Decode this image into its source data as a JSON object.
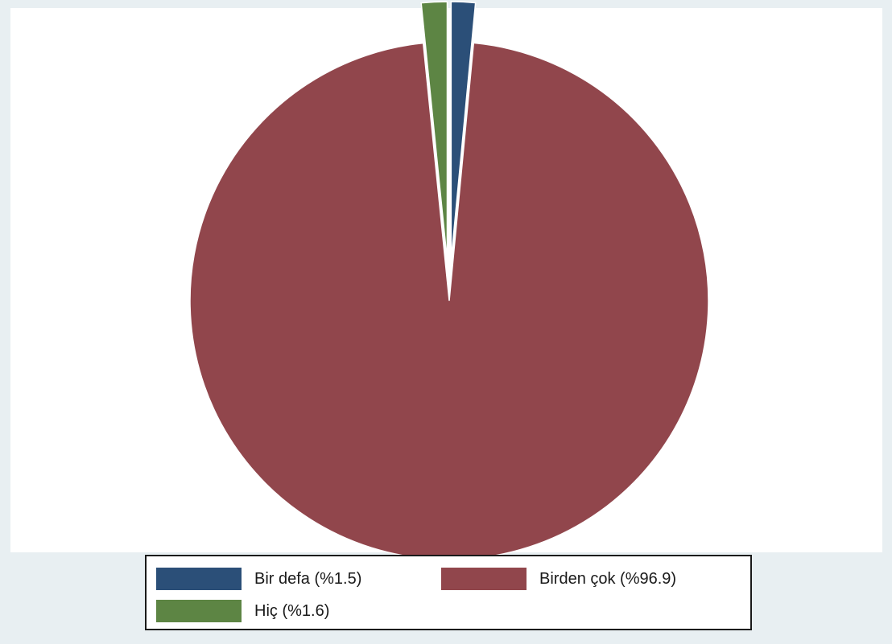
{
  "chart_data": {
    "type": "pie",
    "slices": [
      {
        "label": "Bir defa (%1.5)",
        "value": 1.5,
        "color": "#2b4f78"
      },
      {
        "label": "Birden çok (%96.9)",
        "value": 96.9,
        "color": "#91464c"
      },
      {
        "label": "Hiç (%1.6)",
        "value": 1.6,
        "color": "#5d8544"
      }
    ],
    "legend_position": "bottom",
    "exploded": "Bir defa (%1.5), Hiç (%1.6)"
  }
}
